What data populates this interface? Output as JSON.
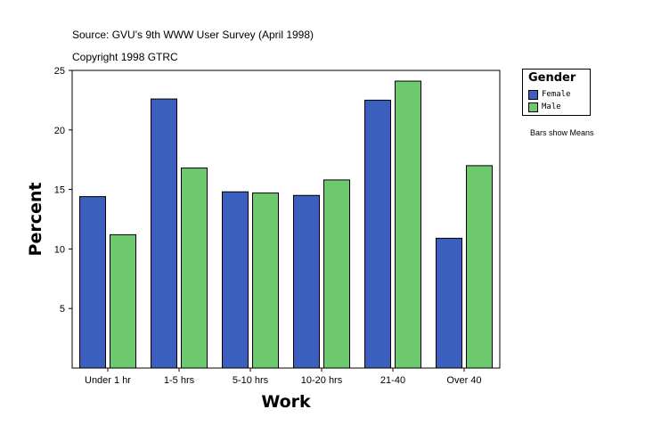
{
  "header": {
    "source": "Source: GVU's 9th WWW User Survey (April 1998)",
    "copyright": "Copyright 1998 GTRC"
  },
  "note": "Bars show Means",
  "colors": {
    "female": "#3a5fbd",
    "male": "#6ec96e"
  },
  "chart_data": {
    "type": "bar",
    "title": "",
    "xlabel": "Work",
    "ylabel": "Percent",
    "categories": [
      "Under 1 hr",
      "1-5 hrs",
      "5-10 hrs",
      "10-20 hrs",
      "21-40",
      "Over 40"
    ],
    "series": [
      {
        "name": "Female",
        "values": [
          14.4,
          22.6,
          14.8,
          14.5,
          22.5,
          10.9
        ]
      },
      {
        "name": "Male",
        "values": [
          11.2,
          16.8,
          14.7,
          15.8,
          24.1,
          17.0
        ]
      }
    ],
    "ylim": [
      0,
      25
    ],
    "yticks": [
      "5",
      "10",
      "15",
      "20",
      "25"
    ],
    "legend": {
      "title": "Gender",
      "position": "right"
    },
    "grid": false
  }
}
